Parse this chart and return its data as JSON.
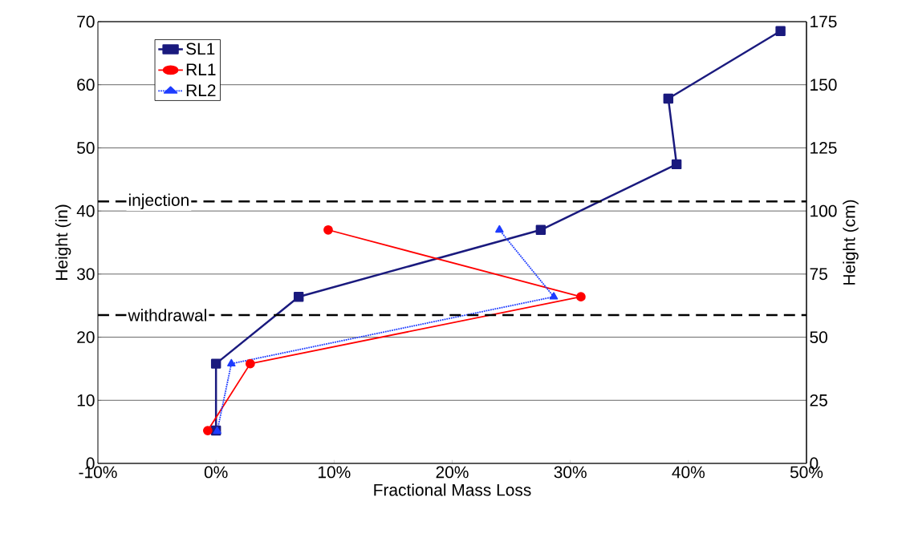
{
  "chart_data": {
    "type": "line",
    "xlabel": "Fractional Mass Loss",
    "ylabel": "Height (in)",
    "y2label": "Height (cm)",
    "xlim": [
      -10,
      50
    ],
    "xticks": [
      {
        "value": -10,
        "label": "-10%"
      },
      {
        "value": 0,
        "label": "0%"
      },
      {
        "value": 10,
        "label": "10%"
      },
      {
        "value": 20,
        "label": "20%"
      },
      {
        "value": 30,
        "label": "30%"
      },
      {
        "value": 40,
        "label": "40%"
      },
      {
        "value": 50,
        "label": "50%"
      }
    ],
    "ylim": [
      0,
      70
    ],
    "yticks": [
      0,
      10,
      20,
      30,
      40,
      50,
      60,
      70
    ],
    "y2lim": [
      0,
      175
    ],
    "y2ticks": [
      0,
      25,
      50,
      75,
      100,
      125,
      150,
      175
    ],
    "grid": "y",
    "legend": "top left",
    "ref_lines": [
      {
        "axis": "y",
        "value": 41.5,
        "label": "injection",
        "line_style": "dashed",
        "color": "#000000"
      },
      {
        "axis": "y",
        "value": 23.5,
        "label": "withdrawal",
        "line_style": "dashed",
        "color": "#000000"
      }
    ],
    "series": [
      {
        "name": "SL1",
        "color": "#1a1a7e",
        "marker": "square",
        "line_style": "solid",
        "x": [
          0,
          0,
          7,
          27.5,
          39,
          38.3,
          47.8
        ],
        "values": [
          5.2,
          15.8,
          26.4,
          37,
          47.4,
          57.8,
          68.5
        ]
      },
      {
        "name": "RL1",
        "color": "#ff0000",
        "marker": "circle",
        "line_style": "solid",
        "x": [
          -0.7,
          2.9,
          30.9,
          9.5
        ],
        "values": [
          5.2,
          15.8,
          26.4,
          37
        ]
      },
      {
        "name": "RL2",
        "color": "#1e3cff",
        "marker": "triangle",
        "line_style": "dotted",
        "x": [
          0.1,
          1.3,
          28.6,
          24
        ],
        "values": [
          5.1,
          15.8,
          26.4,
          37
        ]
      }
    ]
  }
}
